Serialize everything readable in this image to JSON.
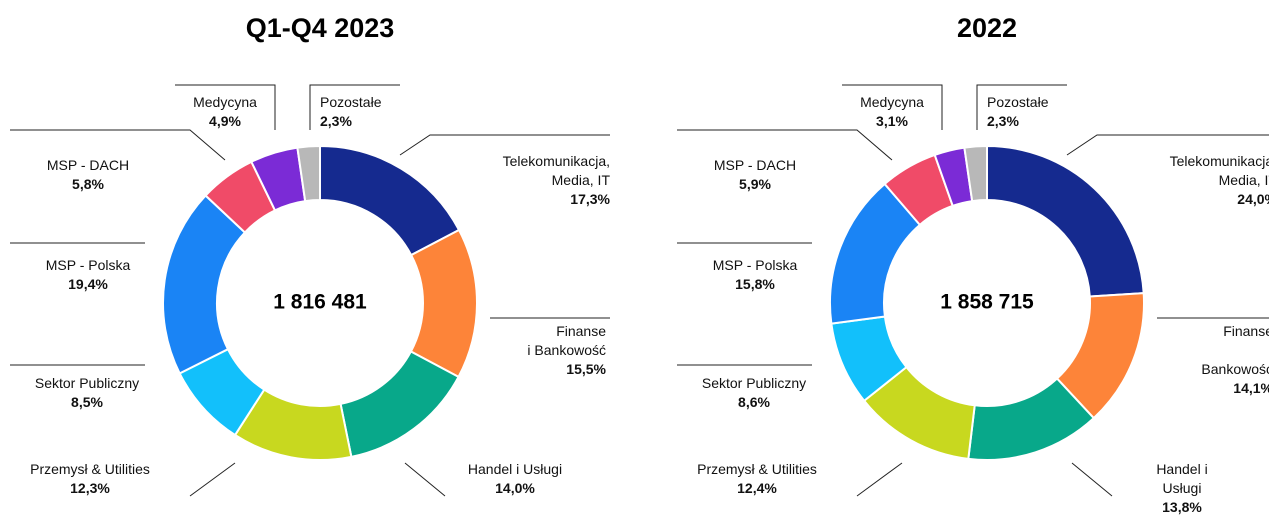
{
  "chart_data": [
    {
      "type": "donut",
      "title": "Q1-Q4 2023",
      "center_text": "1 816 481",
      "categories": [
        "Telekomunikacja,\nMedia, IT",
        "Finanse\ni Bankowość",
        "Handel i Usługi",
        "Przemysł & Utilities",
        "Sektor Publiczny",
        "MSP - Polska",
        "MSP - DACH",
        "Medycyna",
        "Pozostałe"
      ],
      "values": [
        17.3,
        15.5,
        14.0,
        12.3,
        8.5,
        19.4,
        5.8,
        4.9,
        2.3
      ],
      "value_labels": [
        "17,3%",
        "15,5%",
        "14,0%",
        "12,3%",
        "8,5%",
        "19,4%",
        "5,8%",
        "4,9%",
        "2,3%"
      ],
      "colors": [
        "#152a8f",
        "#fd8439",
        "#08a88a",
        "#c8d81f",
        "#12c0fb",
        "#1a84f5",
        "#f04b68",
        "#7b2bd6",
        "#b8b8b8"
      ]
    },
    {
      "type": "donut",
      "title": "2022",
      "center_text": "1 858 715",
      "categories": [
        "Telekomunikacja,\nMedia, IT",
        "Finanse\ni Bankowość",
        "Handel i Usługi",
        "Przemysł & Utilities",
        "Sektor Publiczny",
        "MSP - Polska",
        "MSP - DACH",
        "Medycyna",
        "Pozostałe"
      ],
      "values": [
        24.0,
        14.1,
        13.8,
        12.4,
        8.6,
        15.8,
        5.9,
        3.1,
        2.3
      ],
      "value_labels": [
        "24,0%",
        "14,1%",
        "13,8%",
        "12,4%",
        "8,6%",
        "15,8%",
        "5,9%",
        "3,1%",
        "2,3%"
      ],
      "colors": [
        "#152a8f",
        "#fd8439",
        "#08a88a",
        "#c8d81f",
        "#12c0fb",
        "#1a84f5",
        "#f04b68",
        "#7b2bd6",
        "#b8b8b8"
      ]
    }
  ]
}
